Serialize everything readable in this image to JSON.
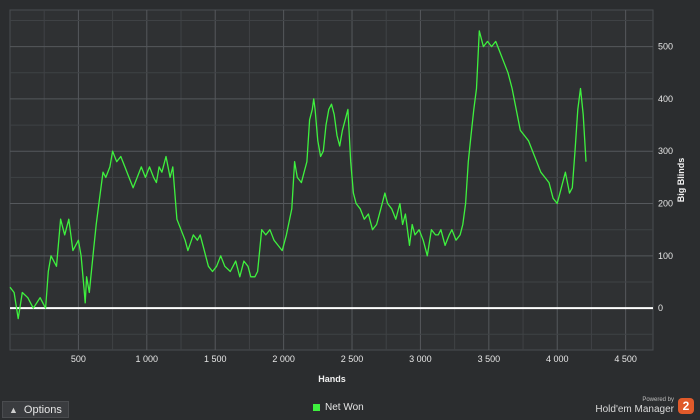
{
  "chart_data": {
    "type": "line",
    "title": "",
    "xlabel": "Hands",
    "ylabel": "Big Blinds",
    "xlim": [
      0,
      4700
    ],
    "ylim": [
      -80,
      570
    ],
    "x_ticks": [
      500,
      1000,
      1500,
      2000,
      2500,
      3000,
      3500,
      4000,
      4500
    ],
    "x_tick_labels": [
      "500",
      "1 000",
      "1 500",
      "2 000",
      "2 500",
      "3 000",
      "3 500",
      "4 000",
      "4 500"
    ],
    "y_ticks": [
      0,
      100,
      200,
      300,
      400,
      500
    ],
    "y_tick_labels": [
      "0",
      "100",
      "200",
      "300",
      "400",
      "500"
    ],
    "grid": true,
    "zero_line": true,
    "legend": "bottom",
    "series": [
      {
        "name": "Net Won",
        "color": "#3ef03e",
        "points": [
          [
            0,
            40
          ],
          [
            30,
            30
          ],
          [
            60,
            -20
          ],
          [
            90,
            30
          ],
          [
            130,
            20
          ],
          [
            170,
            0
          ],
          [
            220,
            20
          ],
          [
            260,
            0
          ],
          [
            280,
            70
          ],
          [
            300,
            100
          ],
          [
            340,
            80
          ],
          [
            370,
            170
          ],
          [
            400,
            140
          ],
          [
            430,
            170
          ],
          [
            460,
            110
          ],
          [
            500,
            130
          ],
          [
            520,
            100
          ],
          [
            540,
            40
          ],
          [
            550,
            10
          ],
          [
            560,
            60
          ],
          [
            580,
            30
          ],
          [
            610,
            110
          ],
          [
            630,
            160
          ],
          [
            650,
            200
          ],
          [
            680,
            260
          ],
          [
            700,
            250
          ],
          [
            730,
            270
          ],
          [
            750,
            300
          ],
          [
            780,
            280
          ],
          [
            810,
            290
          ],
          [
            840,
            270
          ],
          [
            870,
            250
          ],
          [
            900,
            230
          ],
          [
            930,
            250
          ],
          [
            960,
            270
          ],
          [
            990,
            250
          ],
          [
            1020,
            270
          ],
          [
            1050,
            250
          ],
          [
            1070,
            240
          ],
          [
            1090,
            270
          ],
          [
            1110,
            260
          ],
          [
            1140,
            290
          ],
          [
            1170,
            250
          ],
          [
            1190,
            270
          ],
          [
            1220,
            170
          ],
          [
            1250,
            150
          ],
          [
            1280,
            130
          ],
          [
            1300,
            110
          ],
          [
            1340,
            140
          ],
          [
            1370,
            130
          ],
          [
            1390,
            140
          ],
          [
            1420,
            110
          ],
          [
            1450,
            80
          ],
          [
            1480,
            70
          ],
          [
            1510,
            80
          ],
          [
            1540,
            100
          ],
          [
            1570,
            80
          ],
          [
            1610,
            70
          ],
          [
            1650,
            90
          ],
          [
            1680,
            60
          ],
          [
            1710,
            90
          ],
          [
            1740,
            80
          ],
          [
            1760,
            60
          ],
          [
            1790,
            60
          ],
          [
            1810,
            70
          ],
          [
            1840,
            150
          ],
          [
            1870,
            140
          ],
          [
            1900,
            150
          ],
          [
            1930,
            130
          ],
          [
            1960,
            120
          ],
          [
            1990,
            110
          ],
          [
            2020,
            140
          ],
          [
            2060,
            190
          ],
          [
            2080,
            280
          ],
          [
            2100,
            250
          ],
          [
            2130,
            240
          ],
          [
            2150,
            260
          ],
          [
            2170,
            280
          ],
          [
            2190,
            360
          ],
          [
            2210,
            380
          ],
          [
            2220,
            400
          ],
          [
            2230,
            380
          ],
          [
            2250,
            320
          ],
          [
            2270,
            290
          ],
          [
            2290,
            300
          ],
          [
            2310,
            350
          ],
          [
            2330,
            380
          ],
          [
            2350,
            390
          ],
          [
            2370,
            370
          ],
          [
            2390,
            330
          ],
          [
            2410,
            310
          ],
          [
            2430,
            340
          ],
          [
            2450,
            360
          ],
          [
            2470,
            380
          ],
          [
            2480,
            330
          ],
          [
            2490,
            280
          ],
          [
            2510,
            220
          ],
          [
            2530,
            200
          ],
          [
            2560,
            190
          ],
          [
            2590,
            170
          ],
          [
            2620,
            180
          ],
          [
            2650,
            150
          ],
          [
            2680,
            160
          ],
          [
            2710,
            190
          ],
          [
            2740,
            220
          ],
          [
            2760,
            200
          ],
          [
            2790,
            190
          ],
          [
            2820,
            170
          ],
          [
            2850,
            200
          ],
          [
            2870,
            160
          ],
          [
            2890,
            180
          ],
          [
            2920,
            120
          ],
          [
            2940,
            160
          ],
          [
            2960,
            140
          ],
          [
            2990,
            150
          ],
          [
            3020,
            130
          ],
          [
            3050,
            100
          ],
          [
            3080,
            150
          ],
          [
            3110,
            140
          ],
          [
            3130,
            140
          ],
          [
            3150,
            150
          ],
          [
            3180,
            120
          ],
          [
            3210,
            140
          ],
          [
            3230,
            150
          ],
          [
            3260,
            130
          ],
          [
            3290,
            140
          ],
          [
            3310,
            160
          ],
          [
            3330,
            200
          ],
          [
            3350,
            280
          ],
          [
            3370,
            330
          ],
          [
            3390,
            380
          ],
          [
            3410,
            420
          ],
          [
            3430,
            530
          ],
          [
            3460,
            500
          ],
          [
            3490,
            510
          ],
          [
            3520,
            500
          ],
          [
            3550,
            510
          ],
          [
            3580,
            490
          ],
          [
            3610,
            470
          ],
          [
            3640,
            450
          ],
          [
            3670,
            420
          ],
          [
            3700,
            380
          ],
          [
            3730,
            340
          ],
          [
            3760,
            330
          ],
          [
            3790,
            320
          ],
          [
            3820,
            300
          ],
          [
            3850,
            280
          ],
          [
            3880,
            260
          ],
          [
            3910,
            250
          ],
          [
            3940,
            240
          ],
          [
            3970,
            210
          ],
          [
            4000,
            200
          ],
          [
            4030,
            230
          ],
          [
            4060,
            260
          ],
          [
            4090,
            220
          ],
          [
            4110,
            230
          ],
          [
            4130,
            300
          ],
          [
            4150,
            380
          ],
          [
            4170,
            420
          ],
          [
            4190,
            370
          ],
          [
            4210,
            280
          ]
        ]
      }
    ]
  },
  "controls": {
    "options_label": "Options",
    "legend_label": "Net Won"
  },
  "branding": {
    "powered_by": "Powered by",
    "product": "Hold'em Manager",
    "logo_text": "2",
    "logo_color": "#e05a2a"
  }
}
